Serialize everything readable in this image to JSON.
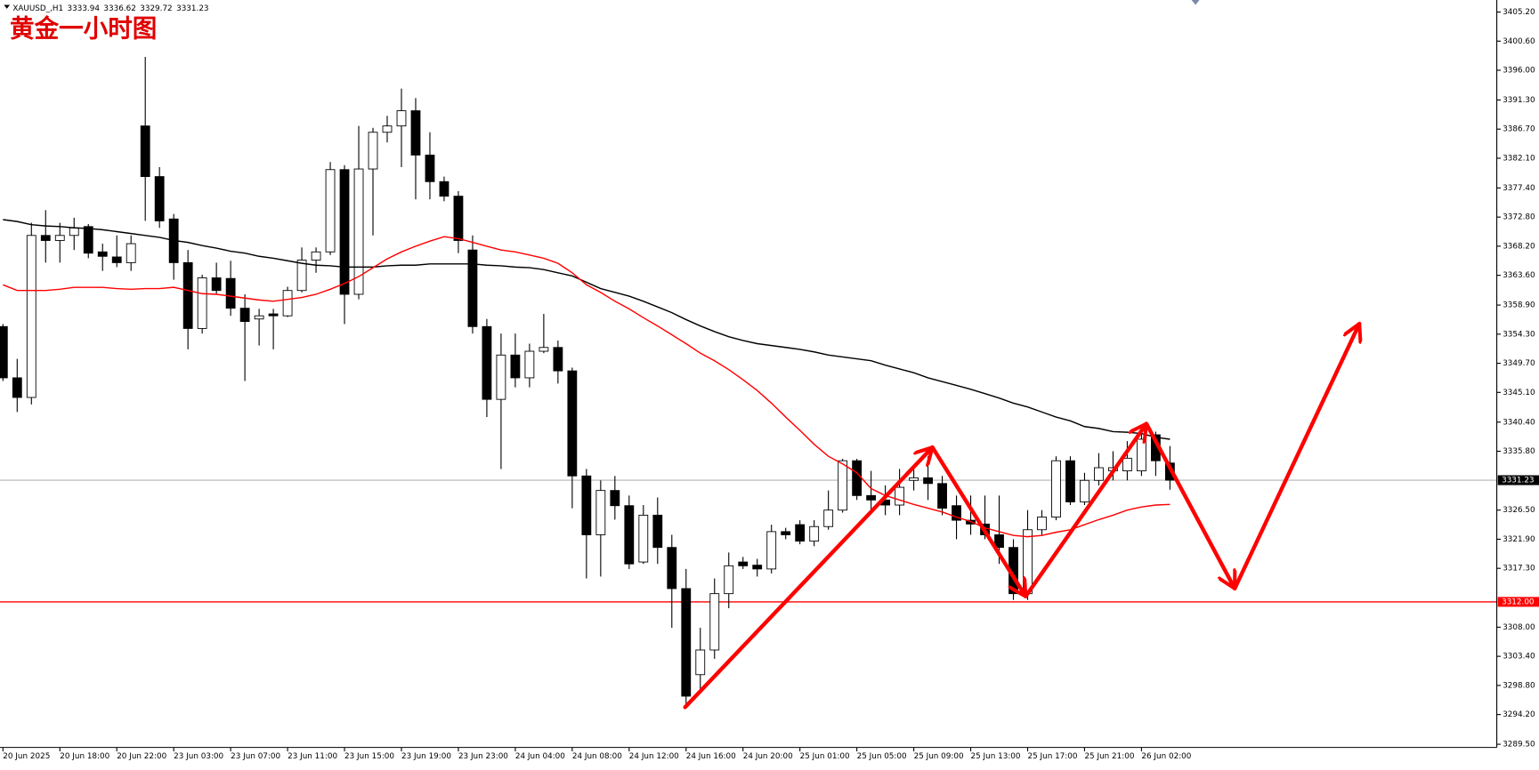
{
  "chart_data": {
    "type": "candlestick",
    "symbol": "XAUUSD_,H1",
    "title": "黄金一小时图",
    "categories": [
      "20 Jun 2025",
      null,
      null,
      null,
      "20 Jun 18:00",
      null,
      null,
      null,
      "20 Jun 22:00",
      null,
      null,
      null,
      "23 Jun 03:00",
      null,
      null,
      null,
      "23 Jun 07:00",
      null,
      null,
      null,
      "23 Jun 11:00",
      null,
      null,
      null,
      "23 Jun 15:00",
      null,
      null,
      null,
      "23 Jun 19:00",
      null,
      null,
      null,
      "23 Jun 23:00",
      null,
      null,
      null,
      "24 Jun 04:00",
      null,
      null,
      null,
      "24 Jun 08:00",
      null,
      null,
      null,
      "24 Jun 12:00",
      null,
      null,
      null,
      "24 Jun 16:00",
      null,
      null,
      null,
      "24 Jun 20:00",
      null,
      null,
      null,
      "25 Jun 01:00",
      null,
      null,
      null,
      "25 Jun 05:00",
      null,
      null,
      null,
      "25 Jun 09:00",
      null,
      null,
      null,
      "25 Jun 13:00",
      null,
      null,
      null,
      "25 Jun 17:00",
      null,
      null,
      null,
      "25 Jun 21:00",
      null,
      null,
      null,
      "26 Jun 02:00",
      null,
      null
    ],
    "open": [
      3355.5,
      3347.4,
      3344.3,
      3369.9,
      3369.1,
      3369.9,
      3371.3,
      3367.3,
      3366.5,
      3365.6,
      3387.2,
      3379.2,
      3372.5,
      3365.6,
      3355.2,
      3363.2,
      3363.1,
      3358.4,
      3356.7,
      3357.5,
      3357.2,
      3361.2,
      3366.0,
      3367.3,
      3380.3,
      3360.6,
      3380.4,
      3386.2,
      3387.2,
      3389.6,
      3382.6,
      3378.4,
      3376.1,
      3367.6,
      3355.5,
      3344.0,
      3351.0,
      3347.4,
      3351.6,
      3352.2,
      3348.5,
      3331.9,
      3322.6,
      3329.6,
      3327.2,
      3318.3,
      3325.7,
      3320.6,
      3314.1,
      3300.5,
      3304.4,
      3313.3,
      3318.3,
      3317.8,
      3317.2,
      3323.1,
      3324.2,
      3321.6,
      3323.9,
      3326.5,
      3334.3,
      3328.8,
      3328.1,
      3327.3,
      3331.2,
      3331.6,
      3330.7,
      3327.2,
      3324.9,
      3324.3,
      3322.6,
      3320.6,
      3313.3,
      3323.4,
      3325.4,
      3334.3,
      3327.8,
      3331.2,
      3332.7,
      3332.7,
      3332.7,
      3338.4,
      3333.94
    ],
    "high": [
      3355.9,
      3350.4,
      3371.9,
      3373.9,
      3371.9,
      3372.7,
      3371.7,
      3368.6,
      3369.9,
      3369.9,
      3398.1,
      3380.7,
      3373.3,
      3367.6,
      3363.7,
      3365.6,
      3365.9,
      3360.6,
      3358.3,
      3358.3,
      3361.8,
      3368.0,
      3368.0,
      3381.5,
      3381.0,
      3387.2,
      3386.9,
      3388.8,
      3393.1,
      3391.6,
      3386.2,
      3379.2,
      3376.9,
      3369.9,
      3356.7,
      3354.4,
      3354.4,
      3352.8,
      3357.5,
      3353.3,
      3349.0,
      3333.0,
      3331.2,
      3331.9,
      3328.8,
      3327.3,
      3328.5,
      3322.6,
      3317.2,
      3307.9,
      3315.7,
      3319.8,
      3319.1,
      3318.8,
      3324.2,
      3323.7,
      3324.9,
      3324.9,
      3329.6,
      3334.6,
      3334.6,
      3332.7,
      3330.4,
      3333.0,
      3333.5,
      3335.0,
      3331.9,
      3328.8,
      3328.8,
      3328.8,
      3328.8,
      3321.9,
      3326.5,
      3326.5,
      3335.0,
      3335.0,
      3332.4,
      3335.5,
      3335.8,
      3337.4,
      3338.9,
      3338.9,
      3336.62
    ],
    "low": [
      3346.9,
      3342.0,
      3343.2,
      3365.6,
      3365.6,
      3367.6,
      3366.3,
      3364.3,
      3364.9,
      3364.3,
      3372.2,
      3371.1,
      3362.9,
      3351.9,
      3354.4,
      3360.6,
      3357.2,
      3346.9,
      3352.5,
      3351.9,
      3357.0,
      3360.9,
      3364.0,
      3366.8,
      3355.9,
      3359.8,
      3369.9,
      3384.6,
      3380.7,
      3375.6,
      3375.6,
      3375.3,
      3367.1,
      3354.4,
      3341.2,
      3333.0,
      3345.9,
      3345.9,
      3351.3,
      3346.5,
      3326.8,
      3315.7,
      3316.0,
      3325.0,
      3317.2,
      3318.0,
      3318.0,
      3307.9,
      3295.5,
      3297.9,
      3303.0,
      3311.0,
      3317.2,
      3316.0,
      3316.5,
      3321.9,
      3321.1,
      3320.8,
      3323.4,
      3326.1,
      3328.1,
      3326.5,
      3325.7,
      3325.7,
      3329.6,
      3328.1,
      3325.7,
      3321.9,
      3322.6,
      3321.9,
      3318.0,
      3312.3,
      3312.3,
      3322.6,
      3324.9,
      3327.3,
      3327.3,
      3330.4,
      3331.2,
      3331.2,
      3331.9,
      3331.9,
      3329.72
    ],
    "close": [
      3347.4,
      3344.3,
      3369.9,
      3369.1,
      3369.9,
      3371.1,
      3367.1,
      3366.6,
      3365.6,
      3368.6,
      3379.2,
      3372.2,
      3365.6,
      3355.2,
      3363.2,
      3361.2,
      3358.4,
      3356.3,
      3357.2,
      3357.2,
      3361.2,
      3366.0,
      3367.3,
      3380.3,
      3360.6,
      3380.4,
      3386.2,
      3387.2,
      3389.6,
      3382.6,
      3378.4,
      3376.1,
      3369.1,
      3355.5,
      3344.0,
      3351.0,
      3347.4,
      3351.6,
      3352.2,
      3348.5,
      3331.9,
      3322.6,
      3329.6,
      3327.2,
      3318.0,
      3325.7,
      3320.6,
      3314.1,
      3297.1,
      3304.4,
      3313.3,
      3317.7,
      3317.7,
      3317.2,
      3323.1,
      3322.6,
      3321.6,
      3323.9,
      3326.5,
      3334.3,
      3328.8,
      3328.1,
      3327.3,
      3330.1,
      3331.6,
      3330.7,
      3326.8,
      3324.9,
      3324.3,
      3322.6,
      3320.6,
      3313.3,
      3323.4,
      3325.4,
      3334.3,
      3327.8,
      3331.2,
      3333.2,
      3333.2,
      3334.7,
      3337.7,
      3334.3,
      3331.23
    ],
    "up_color": "#ffffff",
    "down_color": "#000000",
    "wick_color": "#000000",
    "series": [
      {
        "color": "#000000",
        "values": [
          3372.4,
          3372.1,
          3371.6,
          3371.4,
          3371.3,
          3371.1,
          3371.0,
          3370.8,
          3370.5,
          3370.2,
          3369.9,
          3369.6,
          3369.1,
          3368.8,
          3368.3,
          3367.9,
          3367.4,
          3367.1,
          3366.6,
          3366.3,
          3365.9,
          3365.5,
          3365.2,
          3365.1,
          3364.9,
          3364.9,
          3364.9,
          3365.1,
          3365.2,
          3365.2,
          3365.4,
          3365.4,
          3365.4,
          3365.4,
          3365.2,
          3365.1,
          3364.9,
          3364.8,
          3364.5,
          3364.0,
          3363.5,
          3362.5,
          3361.5,
          3360.9,
          3360.3,
          3359.5,
          3358.6,
          3357.7,
          3356.6,
          3355.6,
          3354.7,
          3353.9,
          3353.3,
          3352.8,
          3352.5,
          3352.2,
          3351.9,
          3351.5,
          3351.0,
          3350.7,
          3350.4,
          3350.1,
          3349.4,
          3348.8,
          3348.2,
          3347.4,
          3346.8,
          3346.2,
          3345.6,
          3344.9,
          3344.2,
          3343.4,
          3342.8,
          3342.0,
          3341.2,
          3340.6,
          3339.7,
          3339.4,
          3338.9,
          3338.8,
          3338.6,
          3338.0,
          3337.7
        ]
      },
      {
        "color": "#ff0000",
        "values": [
          3362.1,
          3361.2,
          3361.2,
          3361.2,
          3361.4,
          3361.7,
          3361.7,
          3361.7,
          3361.5,
          3361.4,
          3361.5,
          3361.5,
          3361.7,
          3361.2,
          3360.7,
          3360.6,
          3360.3,
          3360.0,
          3359.7,
          3359.5,
          3359.8,
          3360.1,
          3360.6,
          3361.4,
          3362.3,
          3363.4,
          3364.8,
          3366.2,
          3367.3,
          3368.2,
          3369.0,
          3369.7,
          3369.4,
          3368.8,
          3368.2,
          3367.6,
          3367.3,
          3366.8,
          3366.3,
          3365.5,
          3364.0,
          3362.1,
          3360.9,
          3359.5,
          3358.3,
          3356.9,
          3355.6,
          3354.2,
          3352.8,
          3351.3,
          3350.1,
          3348.7,
          3347.1,
          3345.4,
          3343.4,
          3341.2,
          3339.1,
          3336.9,
          3335.0,
          3333.8,
          3332.4,
          3329.9,
          3328.8,
          3328.1,
          3327.4,
          3326.8,
          3326.2,
          3325.4,
          3324.7,
          3323.7,
          3323.1,
          3322.5,
          3322.3,
          3322.5,
          3323.0,
          3323.4,
          3324.2,
          3325.0,
          3325.7,
          3326.5,
          3327.0,
          3327.3,
          3327.4
        ]
      }
    ],
    "hlines": [
      {
        "value": 3331.23,
        "color": "#b4b4b4",
        "box": "#000000"
      },
      {
        "value": 3312,
        "label": "3312.00",
        "color": "#ff0000",
        "box": "#ff0000"
      }
    ],
    "ylim": [
      3289.0,
      3407.1
    ],
    "yticks": [
      {
        "value": 3405.2,
        "label": "3405.20"
      },
      {
        "value": 3400.6,
        "label": "3400.60"
      },
      {
        "value": 3396.0,
        "label": "3396.00"
      },
      {
        "value": 3391.3,
        "label": "3391.30"
      },
      {
        "value": 3386.7,
        "label": "3386.70"
      },
      {
        "value": 3382.1,
        "label": "3382.10"
      },
      {
        "value": 3377.4,
        "label": "3377.40"
      },
      {
        "value": 3372.8,
        "label": "3372.80"
      },
      {
        "value": 3368.2,
        "label": "3368.20"
      },
      {
        "value": 3363.6,
        "label": "3363.60"
      },
      {
        "value": 3358.9,
        "label": "3358.90"
      },
      {
        "value": 3354.3,
        "label": "3354.30"
      },
      {
        "value": 3349.7,
        "label": "3349.70"
      },
      {
        "value": 3345.1,
        "label": "3345.10"
      },
      {
        "value": 3340.4,
        "label": "3340.40"
      },
      {
        "value": 3335.8,
        "label": "3335.80"
      },
      {
        "value": 3326.5,
        "label": "3326.50"
      },
      {
        "value": 3321.9,
        "label": "3321.90"
      },
      {
        "value": 3317.3,
        "label": "3317.30"
      },
      {
        "value": 3308.0,
        "label": "3308.00"
      },
      {
        "value": 3303.4,
        "label": "3303.40"
      },
      {
        "value": 3298.8,
        "label": "3298.80"
      },
      {
        "value": 3294.2,
        "label": "3294.20"
      },
      {
        "value": 3289.5,
        "label": "3289.50"
      }
    ],
    "grid": false
  }
}
